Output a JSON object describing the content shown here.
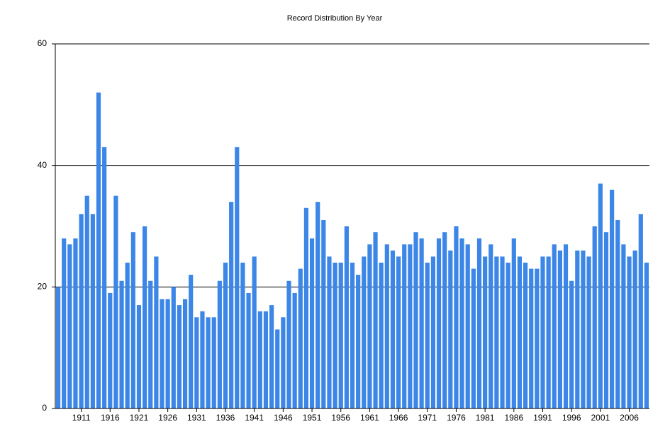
{
  "chart_data": {
    "type": "bar",
    "title": "Record Distribution By Year",
    "categories": [
      null,
      null,
      null,
      null,
      "1911",
      null,
      null,
      null,
      null,
      "1916",
      null,
      null,
      null,
      null,
      "1921",
      null,
      null,
      null,
      null,
      "1926",
      null,
      null,
      null,
      null,
      "1931",
      null,
      null,
      null,
      null,
      "1936",
      null,
      null,
      null,
      null,
      "1941",
      null,
      null,
      null,
      null,
      "1946",
      null,
      null,
      null,
      null,
      "1951",
      null,
      null,
      null,
      null,
      "1956",
      null,
      null,
      null,
      null,
      "1961",
      null,
      null,
      null,
      null,
      "1966",
      null,
      null,
      null,
      null,
      "1971",
      null,
      null,
      null,
      null,
      "1976",
      null,
      null,
      null,
      null,
      "1981",
      null,
      null,
      null,
      null,
      "1986",
      null,
      null,
      null,
      null,
      "1991",
      null,
      null,
      null,
      null,
      "1996",
      null,
      null,
      null,
      null,
      "2001",
      null,
      null,
      null,
      null,
      "2006",
      null,
      null,
      null
    ],
    "values": [
      20,
      28,
      27,
      28,
      32,
      35,
      32,
      52,
      43,
      19,
      35,
      21,
      24,
      29,
      17,
      30,
      21,
      25,
      18,
      18,
      20,
      17,
      18,
      22,
      15,
      16,
      15,
      15,
      21,
      24,
      34,
      43,
      24,
      19,
      25,
      16,
      16,
      17,
      13,
      15,
      21,
      19,
      23,
      33,
      28,
      34,
      31,
      25,
      24,
      24,
      30,
      24,
      22,
      25,
      27,
      29,
      24,
      27,
      26,
      25,
      27,
      27,
      29,
      28,
      24,
      25,
      28,
      29,
      26,
      30,
      28,
      27,
      23,
      28,
      25,
      27,
      25,
      25,
      24,
      28,
      25,
      24,
      23,
      23,
      25,
      25,
      27,
      26,
      27,
      21,
      26,
      26,
      25,
      30,
      37,
      29,
      36,
      31,
      27,
      25,
      26,
      32,
      24
    ],
    "color": "#3b86e6",
    "ylim": [
      0,
      60
    ],
    "yticks": [
      0,
      20,
      40,
      60
    ],
    "grid": true
  }
}
